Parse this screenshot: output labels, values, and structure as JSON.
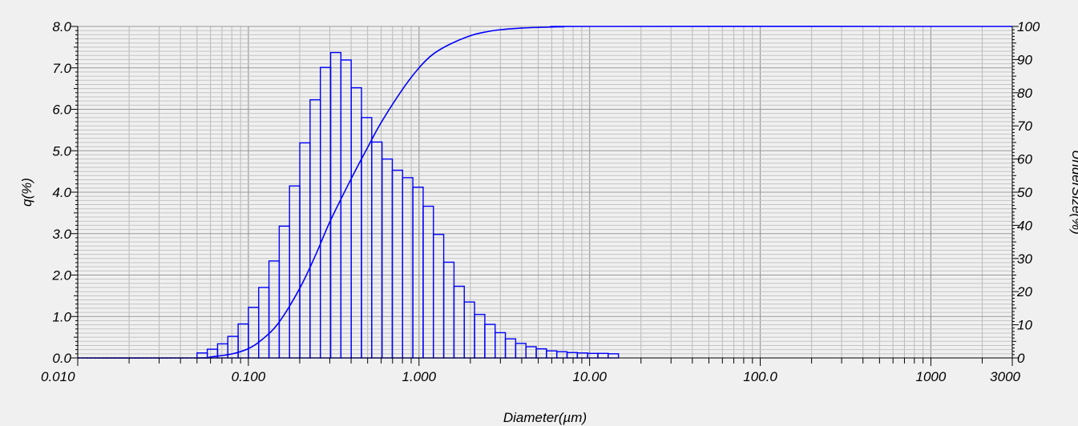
{
  "chart_data": {
    "type": "bar",
    "x_scale": "log",
    "xlim": [
      0.01,
      3000
    ],
    "xlabel": "Diameter(µm)",
    "ylabel_left": "q(%)",
    "ylabel_right": "UnderSize(%)",
    "ylim_left": [
      0,
      8
    ],
    "ylim_right": [
      0,
      100
    ],
    "grid": true,
    "x_tick_labels": [
      {
        "value": 0.01,
        "label": "0.010"
      },
      {
        "value": 0.1,
        "label": "0.100"
      },
      {
        "value": 1,
        "label": "1.000"
      },
      {
        "value": 10,
        "label": "10.00"
      },
      {
        "value": 100,
        "label": "100.0"
      },
      {
        "value": 1000,
        "label": "1000"
      },
      {
        "value": 3000,
        "label": "3000"
      }
    ],
    "y_left_ticks": [
      {
        "value": 0,
        "label": "0.0"
      },
      {
        "value": 1,
        "label": "1.0"
      },
      {
        "value": 2,
        "label": "2.0"
      },
      {
        "value": 3,
        "label": "3.0"
      },
      {
        "value": 4,
        "label": "4.0"
      },
      {
        "value": 5,
        "label": "5.0"
      },
      {
        "value": 6,
        "label": "6.0"
      },
      {
        "value": 7,
        "label": "7.0"
      },
      {
        "value": 8,
        "label": "8.0"
      }
    ],
    "y_right_ticks": [
      {
        "value": 0,
        "label": "0"
      },
      {
        "value": 10,
        "label": "10"
      },
      {
        "value": 20,
        "label": "20"
      },
      {
        "value": 30,
        "label": "30"
      },
      {
        "value": 40,
        "label": "40"
      },
      {
        "value": 50,
        "label": "50"
      },
      {
        "value": 60,
        "label": "60"
      },
      {
        "value": 70,
        "label": "70"
      },
      {
        "value": 80,
        "label": "80"
      },
      {
        "value": 90,
        "label": "90"
      },
      {
        "value": 100,
        "label": "100"
      }
    ],
    "histogram": {
      "x_start": 0.05,
      "bin_ratio": 1.1488,
      "q_values": [
        0.12,
        0.21,
        0.34,
        0.52,
        0.82,
        1.22,
        1.7,
        2.34,
        3.18,
        4.15,
        5.19,
        6.23,
        7.01,
        7.37,
        7.19,
        6.52,
        5.8,
        5.21,
        4.8,
        4.53,
        4.35,
        4.12,
        3.66,
        2.98,
        2.31,
        1.73,
        1.35,
        1.05,
        0.81,
        0.61,
        0.46,
        0.35,
        0.27,
        0.22,
        0.17,
        0.15,
        0.13,
        0.12,
        0.11,
        0.11,
        0.1
      ]
    },
    "cumulative_undersize": {
      "x": [
        0.01,
        0.05,
        0.06,
        0.08,
        0.1,
        0.12,
        0.15,
        0.2,
        0.25,
        0.3,
        0.4,
        0.5,
        0.6,
        0.8,
        1.0,
        1.2,
        1.5,
        2.0,
        2.5,
        3.0,
        4.0,
        5.0,
        7.0,
        10.0,
        3000
      ],
      "y": [
        0,
        0,
        0.3,
        1.2,
        2.8,
        5.5,
        10.5,
        21,
        31.5,
        41,
        54,
        63.5,
        71,
        81,
        87.5,
        91.5,
        94.5,
        97.2,
        98.4,
        99.0,
        99.5,
        99.7,
        99.9,
        100,
        100
      ]
    }
  }
}
